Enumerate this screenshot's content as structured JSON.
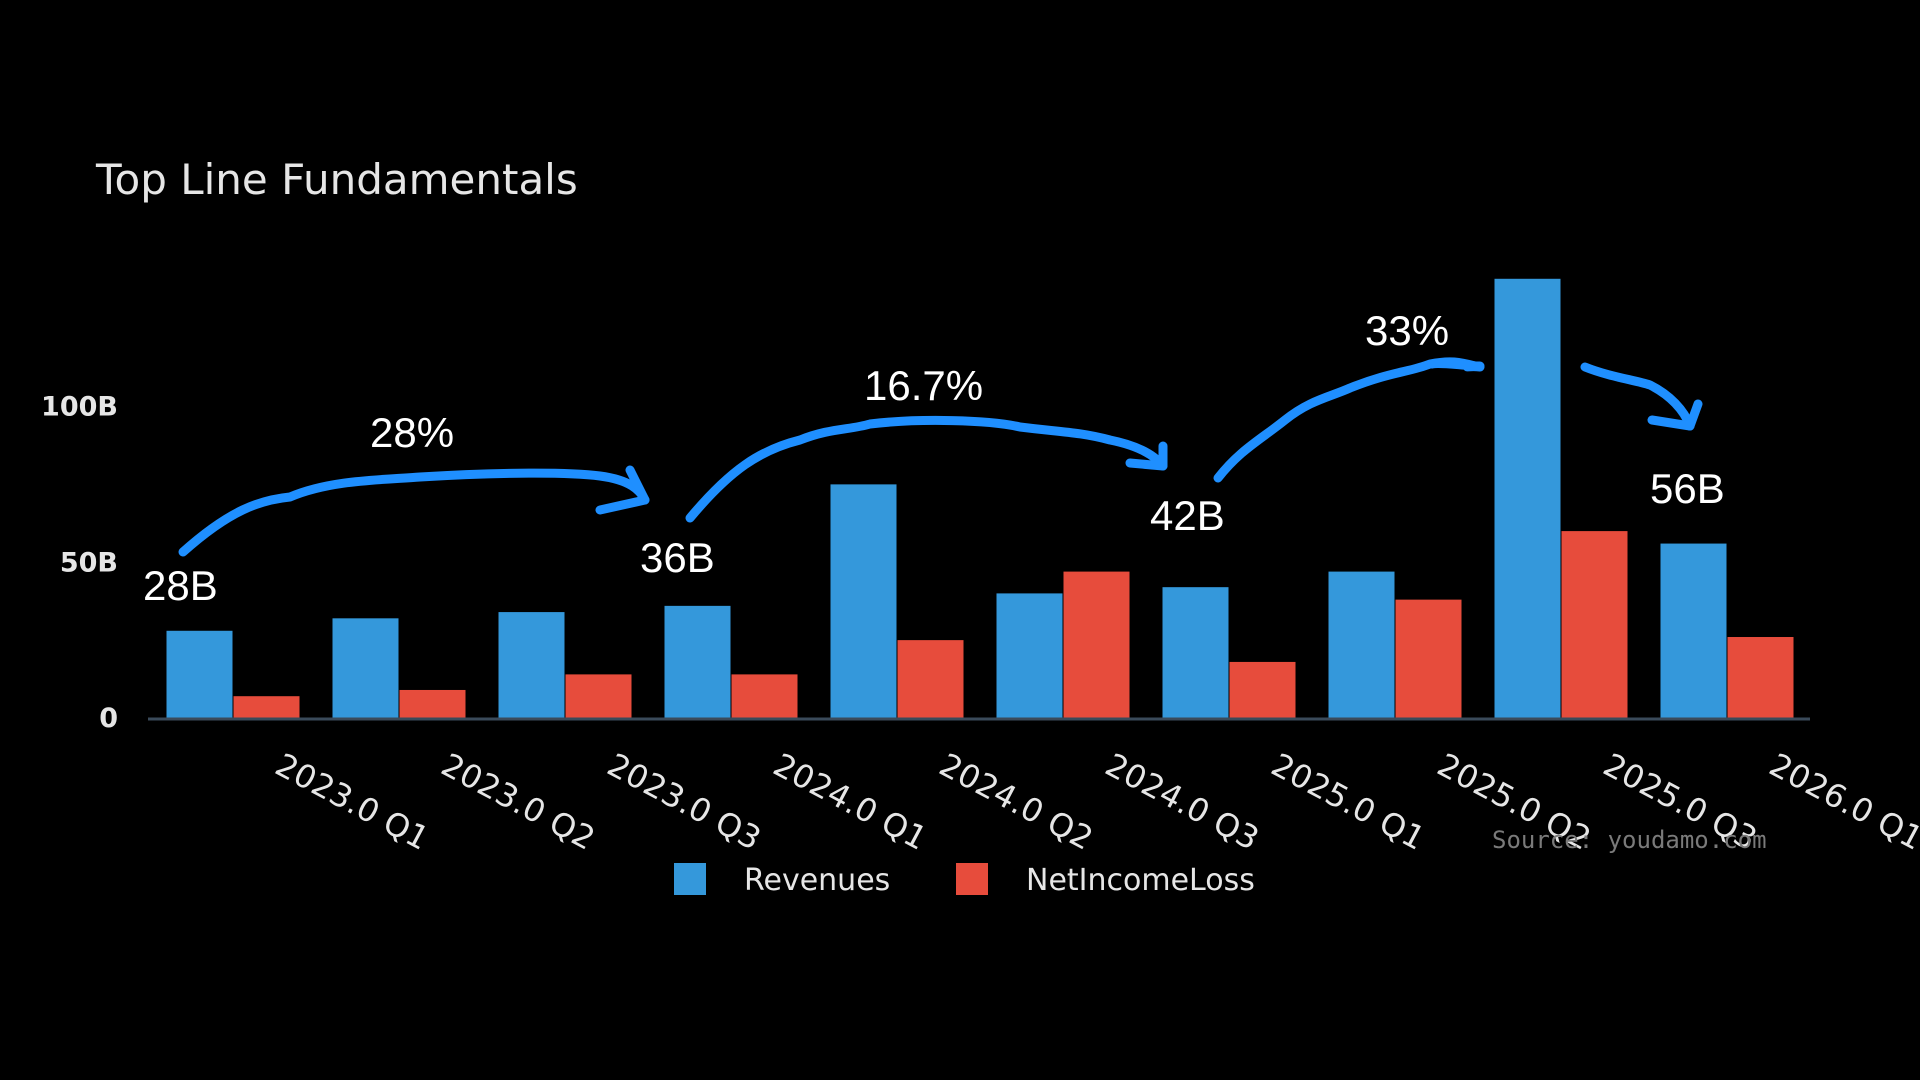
{
  "chart_data": {
    "type": "bar",
    "title": "Top Line Fundamentals",
    "xlabel": "",
    "ylabel": "",
    "categories": [
      "2023.0 Q1",
      "2023.0 Q2",
      "2023.0 Q3",
      "2024.0 Q1",
      "2024.0 Q2",
      "2024.0 Q3",
      "2025.0 Q1",
      "2025.0 Q2",
      "2025.0 Q3",
      "2026.0 Q1"
    ],
    "series": [
      {
        "name": "Revenues",
        "color": "#3498db",
        "values": [
          28,
          32,
          34,
          36,
          75,
          40,
          42,
          47,
          141,
          56
        ]
      },
      {
        "name": "NetIncomeLoss",
        "color": "#e74c3c",
        "values": [
          7,
          9,
          14,
          14,
          25,
          47,
          18,
          38,
          60,
          26
        ]
      }
    ],
    "ylim": [
      0,
      150
    ],
    "yticks": [
      {
        "value": 0,
        "label": "0"
      },
      {
        "value": 50,
        "label": "50B"
      },
      {
        "value": 100,
        "label": "100B"
      }
    ],
    "units": "billions",
    "grid": false,
    "legend_position": "bottom-center",
    "source": "Source: youdamo.com",
    "annotations": {
      "value_labels": [
        {
          "text": "28B",
          "category_index": 0
        },
        {
          "text": "36B",
          "category_index": 3
        },
        {
          "text": "42B",
          "category_index": 6
        },
        {
          "text": "56B",
          "category_index": 9
        }
      ],
      "growth_labels": [
        "28%",
        "16.7%",
        "33%"
      ]
    },
    "colors": {
      "background": "#000000",
      "text": "#e6e6e6",
      "annotation_text": "#ffffff",
      "annotation_arrow": "#1f8fff",
      "axis": "#3a4a5a"
    }
  }
}
